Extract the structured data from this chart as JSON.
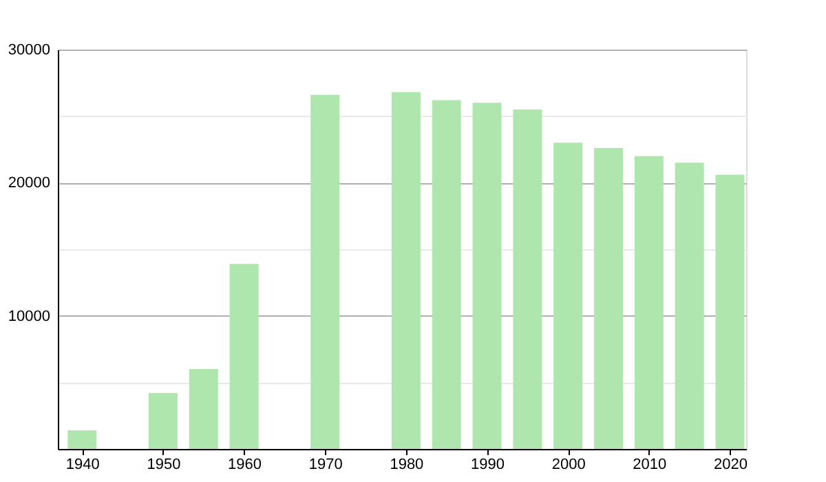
{
  "chart_data": {
    "type": "bar",
    "x": [
      1940,
      1950,
      1955,
      1960,
      1970,
      1980,
      1985,
      1990,
      1995,
      2000,
      2005,
      2010,
      2015,
      2020
    ],
    "values": [
      1400,
      4200,
      6000,
      13900,
      26600,
      26800,
      26200,
      26000,
      25500,
      23000,
      22600,
      22000,
      21500,
      20600
    ],
    "color": "#aee6ae",
    "xlim": [
      1937,
      2022
    ],
    "xticks": [
      1940,
      1950,
      1960,
      1970,
      1980,
      1990,
      2000,
      2010,
      2020
    ],
    "ylim": [
      0,
      30000
    ],
    "yticks": [
      {
        "value": 5000,
        "label": null
      },
      10000,
      {
        "value": 15000,
        "label": null
      },
      20000,
      {
        "value": 25000,
        "label": null
      },
      30000
    ],
    "grid": "y"
  }
}
